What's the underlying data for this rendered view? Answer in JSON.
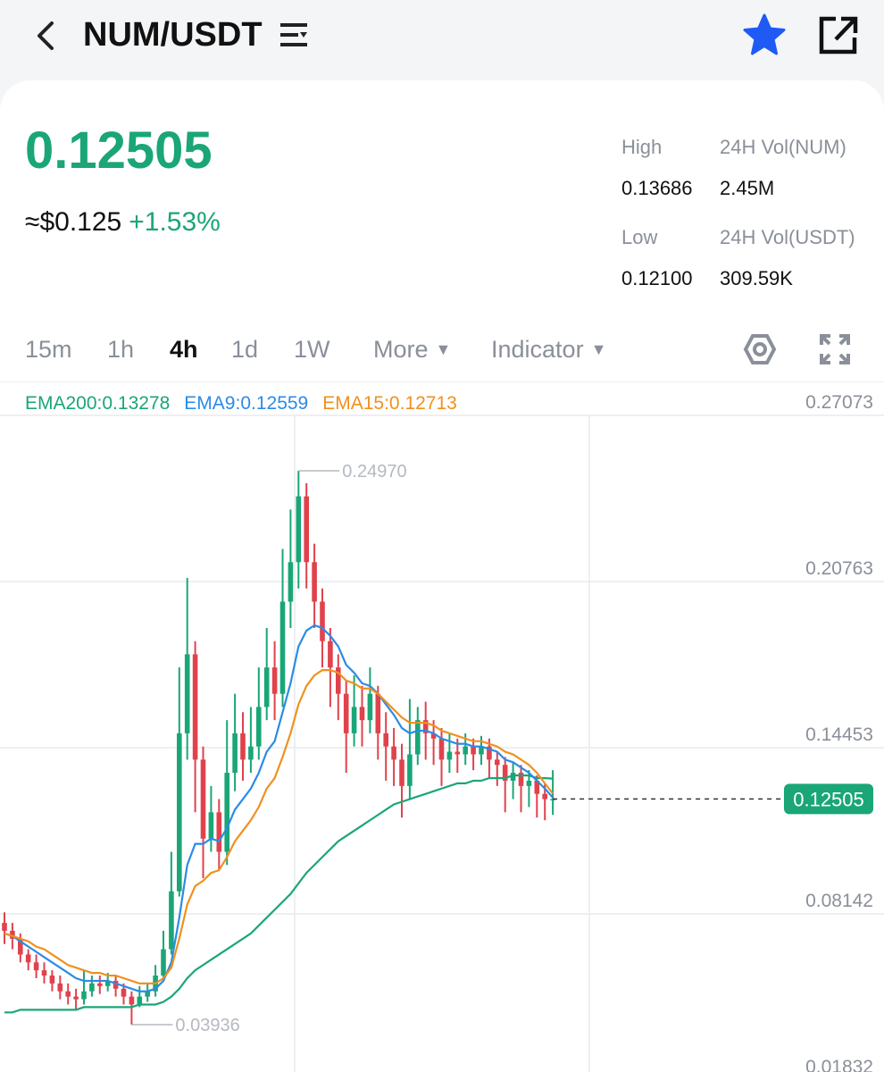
{
  "header": {
    "pair": "NUM/USDT"
  },
  "ticker": {
    "price": "0.12505",
    "usd": "≈$0.125",
    "change": "+1.53%",
    "stats": [
      {
        "label": "High",
        "value": "0.13686"
      },
      {
        "label": "24H Vol(NUM)",
        "value": "2.45M"
      },
      {
        "label": "Low",
        "value": "0.12100"
      },
      {
        "label": "24H Vol(USDT)",
        "value": "309.59K"
      }
    ]
  },
  "intervals": [
    "15m",
    "1h",
    "4h",
    "1d",
    "1W"
  ],
  "menus": [
    "More",
    "Indicator"
  ],
  "chart_data": {
    "type": "candlestick",
    "up_color": "#1aa677",
    "down_color": "#e0424c",
    "ylim": [
      0.01832,
      0.27073
    ],
    "yticks": [
      0.27073,
      0.20763,
      0.14453,
      0.08142,
      0.01832
    ],
    "grid": true,
    "last_price": 0.12505,
    "annotations": [
      {
        "value": 0.2497,
        "label": "0.24970"
      },
      {
        "value": 0.03936,
        "label": "0.03936"
      }
    ],
    "open": [
      0.078,
      0.075,
      0.072,
      0.066,
      0.063,
      0.06,
      0.058,
      0.055,
      0.052,
      0.05,
      0.049,
      0.052,
      0.055,
      0.054,
      0.056,
      0.053,
      0.05,
      0.047,
      0.05,
      0.052,
      0.058,
      0.068,
      0.09,
      0.15,
      0.18,
      0.14,
      0.11,
      0.12,
      0.105,
      0.135,
      0.15,
      0.14,
      0.145,
      0.16,
      0.175,
      0.165,
      0.2,
      0.215,
      0.24,
      0.215,
      0.2,
      0.185,
      0.175,
      0.165,
      0.15,
      0.16,
      0.155,
      0.165,
      0.15,
      0.145,
      0.14,
      0.13,
      0.142,
      0.155,
      0.15,
      0.148,
      0.14,
      0.143,
      0.142,
      0.145,
      0.142,
      0.145,
      0.14,
      0.138,
      0.132,
      0.135,
      0.13,
      0.132,
      0.127,
      0.125
    ],
    "high": [
      0.082,
      0.078,
      0.074,
      0.068,
      0.066,
      0.063,
      0.06,
      0.058,
      0.055,
      0.053,
      0.06,
      0.058,
      0.058,
      0.059,
      0.058,
      0.055,
      0.052,
      0.054,
      0.055,
      0.062,
      0.075,
      0.105,
      0.175,
      0.209,
      0.185,
      0.145,
      0.13,
      0.125,
      0.155,
      0.165,
      0.158,
      0.16,
      0.175,
      0.19,
      0.185,
      0.22,
      0.235,
      0.2497,
      0.245,
      0.222,
      0.205,
      0.19,
      0.18,
      0.17,
      0.172,
      0.168,
      0.175,
      0.168,
      0.158,
      0.152,
      0.146,
      0.163,
      0.16,
      0.162,
      0.155,
      0.152,
      0.15,
      0.148,
      0.15,
      0.148,
      0.149,
      0.148,
      0.143,
      0.141,
      0.139,
      0.138,
      0.136,
      0.134,
      0.131,
      0.136
    ],
    "low": [
      0.07,
      0.068,
      0.063,
      0.06,
      0.057,
      0.055,
      0.052,
      0.049,
      0.047,
      0.045,
      0.047,
      0.05,
      0.051,
      0.052,
      0.05,
      0.047,
      0.03936,
      0.046,
      0.048,
      0.05,
      0.056,
      0.066,
      0.088,
      0.14,
      0.12,
      0.095,
      0.105,
      0.098,
      0.1,
      0.128,
      0.132,
      0.135,
      0.14,
      0.155,
      0.155,
      0.16,
      0.19,
      0.205,
      0.205,
      0.19,
      0.175,
      0.16,
      0.155,
      0.135,
      0.145,
      0.145,
      0.15,
      0.14,
      0.132,
      0.13,
      0.118,
      0.125,
      0.138,
      0.14,
      0.138,
      0.13,
      0.135,
      0.135,
      0.138,
      0.136,
      0.138,
      0.133,
      0.13,
      0.12,
      0.125,
      0.12,
      0.122,
      0.118,
      0.117,
      0.119
    ],
    "close": [
      0.075,
      0.072,
      0.066,
      0.063,
      0.06,
      0.058,
      0.055,
      0.052,
      0.05,
      0.049,
      0.052,
      0.055,
      0.054,
      0.056,
      0.053,
      0.05,
      0.047,
      0.05,
      0.052,
      0.058,
      0.068,
      0.09,
      0.15,
      0.18,
      0.14,
      0.11,
      0.12,
      0.105,
      0.135,
      0.15,
      0.14,
      0.145,
      0.16,
      0.175,
      0.165,
      0.2,
      0.215,
      0.24,
      0.215,
      0.2,
      0.185,
      0.175,
      0.165,
      0.15,
      0.16,
      0.155,
      0.165,
      0.15,
      0.145,
      0.14,
      0.13,
      0.142,
      0.155,
      0.15,
      0.148,
      0.14,
      0.143,
      0.142,
      0.145,
      0.142,
      0.145,
      0.14,
      0.138,
      0.132,
      0.135,
      0.13,
      0.132,
      0.127,
      0.125,
      0.12505
    ],
    "lines": [
      {
        "name": "EMA200:0.13278",
        "color": "#1aa677",
        "values": [
          0.044,
          0.044,
          0.045,
          0.045,
          0.045,
          0.045,
          0.045,
          0.045,
          0.045,
          0.045,
          0.046,
          0.046,
          0.046,
          0.046,
          0.046,
          0.046,
          0.046,
          0.047,
          0.047,
          0.047,
          0.048,
          0.05,
          0.053,
          0.057,
          0.06,
          0.062,
          0.064,
          0.066,
          0.068,
          0.07,
          0.072,
          0.074,
          0.077,
          0.08,
          0.083,
          0.086,
          0.089,
          0.093,
          0.097,
          0.1,
          0.103,
          0.106,
          0.109,
          0.111,
          0.113,
          0.115,
          0.117,
          0.119,
          0.121,
          0.123,
          0.124,
          0.125,
          0.126,
          0.127,
          0.128,
          0.129,
          0.13,
          0.131,
          0.131,
          0.132,
          0.132,
          0.133,
          0.133,
          0.133,
          0.134,
          0.134,
          0.134,
          0.133,
          0.133,
          0.13278
        ]
      },
      {
        "name": "EMA9:0.12559",
        "color": "#2b8be6",
        "values": [
          0.074,
          0.073,
          0.071,
          0.069,
          0.067,
          0.065,
          0.063,
          0.061,
          0.059,
          0.057,
          0.056,
          0.056,
          0.056,
          0.056,
          0.055,
          0.054,
          0.053,
          0.052,
          0.052,
          0.053,
          0.056,
          0.063,
          0.08,
          0.1,
          0.108,
          0.108,
          0.11,
          0.109,
          0.114,
          0.121,
          0.125,
          0.129,
          0.135,
          0.143,
          0.147,
          0.158,
          0.169,
          0.183,
          0.189,
          0.191,
          0.19,
          0.187,
          0.183,
          0.176,
          0.173,
          0.169,
          0.168,
          0.165,
          0.161,
          0.157,
          0.152,
          0.15,
          0.151,
          0.151,
          0.15,
          0.148,
          0.147,
          0.146,
          0.146,
          0.145,
          0.145,
          0.144,
          0.143,
          0.14,
          0.139,
          0.137,
          0.135,
          0.132,
          0.129,
          0.12559
        ]
      },
      {
        "name": "EMA15:0.12713",
        "color": "#f0901e",
        "values": [
          0.074,
          0.073,
          0.072,
          0.071,
          0.069,
          0.068,
          0.066,
          0.064,
          0.062,
          0.061,
          0.06,
          0.059,
          0.059,
          0.058,
          0.058,
          0.057,
          0.056,
          0.055,
          0.055,
          0.055,
          0.057,
          0.061,
          0.072,
          0.085,
          0.092,
          0.094,
          0.097,
          0.098,
          0.103,
          0.109,
          0.113,
          0.117,
          0.122,
          0.129,
          0.133,
          0.141,
          0.15,
          0.161,
          0.168,
          0.172,
          0.174,
          0.174,
          0.173,
          0.17,
          0.169,
          0.167,
          0.167,
          0.165,
          0.162,
          0.159,
          0.156,
          0.154,
          0.154,
          0.154,
          0.153,
          0.151,
          0.15,
          0.149,
          0.148,
          0.147,
          0.147,
          0.146,
          0.145,
          0.143,
          0.142,
          0.14,
          0.138,
          0.135,
          0.131,
          0.12713
        ]
      }
    ]
  }
}
